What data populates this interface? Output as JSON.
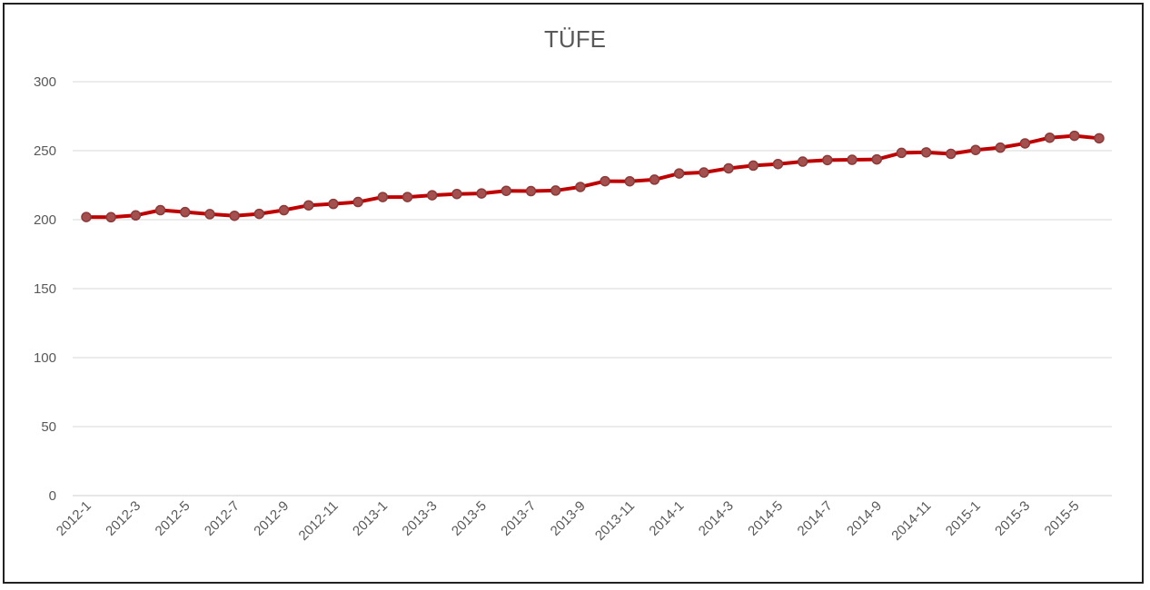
{
  "chart_data": {
    "type": "line",
    "title": "TÜFE",
    "xlabel": "",
    "ylabel": "",
    "ylim": [
      0,
      300
    ],
    "yticks": [
      0,
      50,
      100,
      150,
      200,
      250,
      300
    ],
    "grid": true,
    "legend": "none",
    "x": [
      "2012-1",
      "2012-2",
      "2012-3",
      "2012-4",
      "2012-5",
      "2012-6",
      "2012-7",
      "2012-8",
      "2012-9",
      "2012-10",
      "2012-11",
      "2012-12",
      "2013-1",
      "2013-2",
      "2013-3",
      "2013-4",
      "2013-5",
      "2013-6",
      "2013-7",
      "2013-8",
      "2013-9",
      "2013-10",
      "2013-11",
      "2013-12",
      "2014-1",
      "2014-2",
      "2014-3",
      "2014-4",
      "2014-5",
      "2014-6",
      "2014-7",
      "2014-8",
      "2014-9",
      "2014-10",
      "2014-11",
      "2014-12",
      "2015-1",
      "2015-2",
      "2015-3",
      "2015-4",
      "2015-5",
      "2015-6"
    ],
    "x_tick_labels": [
      "2012-1",
      "2012-3",
      "2012-5",
      "2012-7",
      "2012-9",
      "2012-11",
      "2013-1",
      "2013-3",
      "2013-5",
      "2013-7",
      "2013-9",
      "2013-11",
      "2014-1",
      "2014-3",
      "2014-5",
      "2014-7",
      "2014-9",
      "2014-11",
      "2015-1",
      "2015-3",
      "2015-5"
    ],
    "series": [
      {
        "values": [
          201.9,
          201.8,
          203.1,
          206.9,
          205.5,
          204.0,
          202.8,
          204.2,
          206.9,
          210.4,
          211.4,
          212.8,
          216.4,
          216.4,
          217.7,
          218.6,
          219.0,
          220.9,
          220.7,
          221.1,
          223.7,
          227.9,
          227.8,
          229.0,
          233.5,
          234.2,
          237.2,
          239.2,
          240.3,
          242.1,
          243.2,
          243.4,
          243.7,
          248.4,
          248.8,
          247.7,
          250.5,
          252.2,
          255.3,
          259.4,
          260.8,
          259.0
        ],
        "line_color": "#c00000",
        "marker_color": "#a4504f"
      }
    ]
  }
}
